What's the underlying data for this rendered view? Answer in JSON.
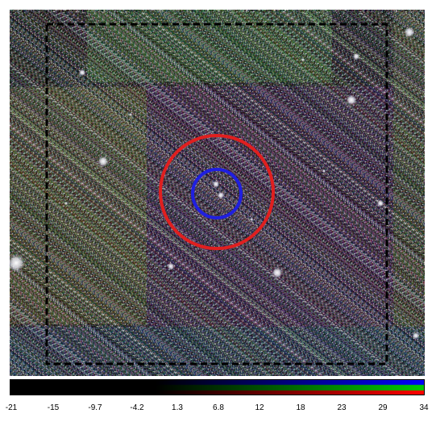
{
  "viewer": {
    "image_name": "sky-image",
    "inner_circle_color": "#1f1fe0",
    "outer_circle_color": "#e01f1f",
    "box_color": "#000000"
  },
  "colorbar": {
    "channels": [
      "#ff0000",
      "#00cc00",
      "#0000ff"
    ],
    "ticks": [
      "-21",
      "-15",
      "-9.7",
      "-4.2",
      "1.3",
      "6.8",
      "12",
      "18",
      "23",
      "29",
      "34"
    ]
  }
}
